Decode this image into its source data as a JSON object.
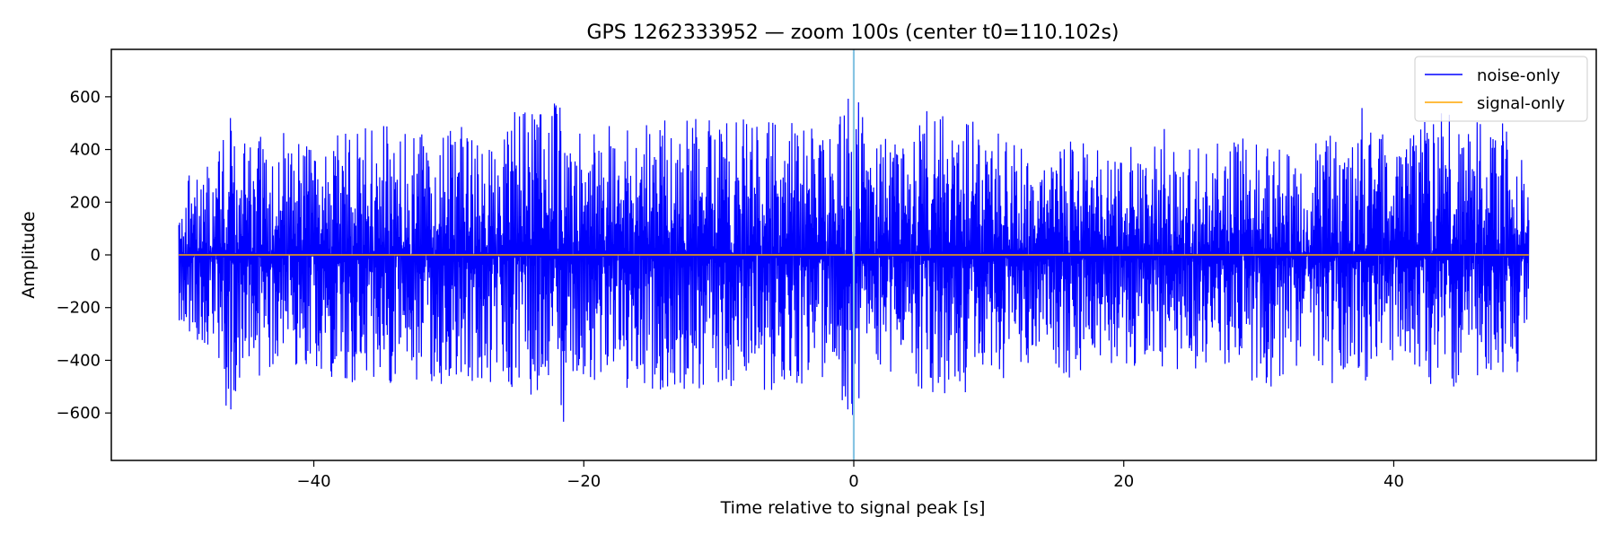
{
  "chart_data": {
    "type": "line",
    "title": "GPS 1262333952 — zoom 100s (center t0=110.102s)",
    "xlabel": "Time relative to signal peak [s]",
    "ylabel": "Amplitude",
    "xlim": [
      -55,
      55
    ],
    "ylim": [
      -780,
      780
    ],
    "x_ticks": [
      -40,
      -20,
      0,
      20,
      40
    ],
    "x_tick_labels": [
      "−40",
      "−20",
      "0",
      "20",
      "40"
    ],
    "y_ticks": [
      600,
      400,
      200,
      0,
      -200,
      -400,
      -600
    ],
    "y_tick_labels": [
      "600",
      "400",
      "200",
      "0",
      "−200",
      "−400",
      "−600"
    ],
    "grid": false,
    "legend_position": "top-right",
    "vline": {
      "x": 0,
      "color": "#87c4e3"
    },
    "series": [
      {
        "name": "noise-only",
        "color": "#0000ff",
        "x_range": [
          -50,
          50
        ],
        "envelope": {
          "t": [
            -50,
            -48,
            -47,
            -46.5,
            -45,
            -43,
            -40,
            -37,
            -36.5,
            -34,
            -32,
            -30,
            -28,
            -26,
            -25.2,
            -24,
            -23,
            -22.5,
            -22,
            -21.5,
            -21,
            -18,
            -15,
            -12,
            -10,
            -8,
            -6,
            -3,
            -1,
            0,
            1,
            3,
            4.5,
            6,
            8,
            10,
            12,
            14.5,
            16,
            18,
            20,
            22,
            24,
            26,
            28,
            30,
            32,
            34,
            36,
            38,
            40,
            42,
            44,
            46,
            48,
            48.8,
            50
          ],
          "upper": [
            300,
            350,
            430,
            630,
            480,
            500,
            460,
            500,
            550,
            520,
            500,
            540,
            500,
            520,
            660,
            580,
            560,
            680,
            700,
            690,
            480,
            520,
            540,
            560,
            540,
            560,
            540,
            540,
            560,
            720,
            480,
            460,
            520,
            610,
            560,
            540,
            440,
            400,
            560,
            440,
            440,
            480,
            560,
            440,
            460,
            480,
            440,
            480,
            540,
            600,
            400,
            520,
            600,
            560,
            560,
            540,
            320
          ],
          "lower": [
            -280,
            -380,
            -420,
            -660,
            -500,
            -500,
            -460,
            -560,
            -500,
            -520,
            -500,
            -540,
            -500,
            -520,
            -640,
            -560,
            -600,
            -690,
            -710,
            -700,
            -480,
            -540,
            -540,
            -560,
            -540,
            -560,
            -540,
            -540,
            -560,
            -720,
            -480,
            -480,
            -520,
            -560,
            -560,
            -540,
            -460,
            -420,
            -500,
            -440,
            -440,
            -460,
            -460,
            -460,
            -500,
            -600,
            -480,
            -420,
            -560,
            -580,
            -420,
            -500,
            -560,
            -500,
            -560,
            -580,
            -320
          ]
        }
      },
      {
        "name": "signal-only",
        "color": "#ffa500",
        "x": [
          -50,
          50
        ],
        "y": [
          0,
          0
        ]
      }
    ]
  }
}
